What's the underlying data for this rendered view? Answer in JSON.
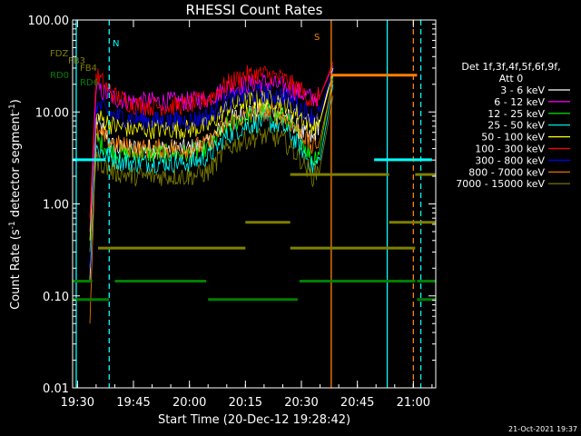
{
  "chart_data": {
    "type": "line",
    "title": "RHESSI Count Rates",
    "xlabel": "Start Time (20-Dec-12 19:28:42)",
    "ylabel": "Count Rate (s⁻¹ detector segment⁻¹)",
    "ylabel_parts": [
      "Count Rate (s",
      "-1",
      " detector segment",
      "-1",
      ")"
    ],
    "y_scale": "log",
    "xlim": [
      "19:28:42",
      "21:06:00"
    ],
    "ylim": [
      0.01,
      100
    ],
    "x_ticks": [
      "19:30",
      "19:45",
      "20:00",
      "20:15",
      "20:30",
      "20:45",
      "21:00"
    ],
    "y_ticks": [
      "0.01",
      "0.10",
      "1.00",
      "10.00",
      "100.00"
    ],
    "legend_header": [
      "Det 1f,3f,4f,5f,6f,9f,",
      "Att 0"
    ],
    "legend_position": "right",
    "series": [
      {
        "name": "3 - 6 keV",
        "color": "#ffffff",
        "x": [
          "19:33:20",
          "19:35:00",
          "19:40:00",
          "19:45:00",
          "19:50:00",
          "19:55:00",
          "20:00:00",
          "20:05:00",
          "20:10:00",
          "20:15:00",
          "20:20:00",
          "20:25:00",
          "20:30:00",
          "20:33:00",
          "20:35:00",
          "20:38:30"
        ],
        "values": [
          0.15,
          8,
          4,
          4,
          4,
          4,
          4,
          4.5,
          8,
          10,
          11,
          10,
          6,
          5,
          8,
          30
        ]
      },
      {
        "name": "6 - 12 keV",
        "color": "#ff00ff",
        "x": [
          "19:33:20",
          "19:35:00",
          "19:40:00",
          "19:45:00",
          "19:50:00",
          "19:55:00",
          "20:00:00",
          "20:05:00",
          "20:10:00",
          "20:15:00",
          "20:20:00",
          "20:25:00",
          "20:30:00",
          "20:33:00",
          "20:35:00",
          "20:38:30"
        ],
        "values": [
          0.5,
          18,
          14,
          13,
          13,
          13,
          13,
          14,
          18,
          20,
          21,
          19,
          16,
          14,
          15,
          32
        ]
      },
      {
        "name": "12 - 25 keV",
        "color": "#00ff00",
        "x": [
          "19:33:20",
          "19:35:00",
          "19:40:00",
          "19:45:00",
          "19:50:00",
          "19:55:00",
          "20:00:00",
          "20:05:00",
          "20:10:00",
          "20:15:00",
          "20:20:00",
          "20:25:00",
          "20:30:00",
          "20:33:00",
          "20:35:00",
          "20:38:30"
        ],
        "values": [
          0.3,
          5,
          3.5,
          3.5,
          3.5,
          3.5,
          3.5,
          4,
          7,
          9,
          10,
          9,
          5,
          3,
          4,
          25
        ]
      },
      {
        "name": "25 - 50 keV",
        "color": "#00ffff",
        "x": [
          "19:33:20",
          "19:35:00",
          "19:40:00",
          "19:45:00",
          "19:50:00",
          "19:55:00",
          "20:00:00",
          "20:05:00",
          "20:10:00",
          "20:15:00",
          "20:20:00",
          "20:25:00",
          "20:30:00",
          "20:33:00",
          "20:35:00",
          "20:38:30"
        ],
        "values": [
          0.2,
          4,
          3,
          2.8,
          2.8,
          2.8,
          2.8,
          3.2,
          5.5,
          7,
          8,
          7,
          4,
          2.5,
          3,
          20
        ]
      },
      {
        "name": "50 - 100 keV",
        "color": "#ffff00",
        "x": [
          "19:33:20",
          "19:35:00",
          "19:40:00",
          "19:45:00",
          "19:50:00",
          "19:55:00",
          "20:00:00",
          "20:05:00",
          "20:10:00",
          "20:15:00",
          "20:20:00",
          "20:25:00",
          "20:30:00",
          "20:33:00",
          "20:35:00",
          "20:38:30"
        ],
        "values": [
          0.4,
          9,
          7,
          6.5,
          6.5,
          6.5,
          6.5,
          7,
          11,
          13,
          14,
          13,
          9,
          7,
          8,
          26
        ]
      },
      {
        "name": "100 - 300 keV",
        "color": "#ff0000",
        "x": [
          "19:33:20",
          "19:35:00",
          "19:40:00",
          "19:45:00",
          "19:50:00",
          "19:55:00",
          "20:00:00",
          "20:05:00",
          "20:10:00",
          "20:15:00",
          "20:20:00",
          "20:25:00",
          "20:30:00",
          "20:33:00",
          "20:35:00",
          "20:38:30"
        ],
        "values": [
          0.7,
          25,
          15,
          12,
          11.5,
          11.5,
          12,
          14,
          20,
          25,
          26,
          23,
          17,
          13,
          15,
          35
        ]
      },
      {
        "name": "300 - 800 keV",
        "color": "#0000ff",
        "x": [
          "19:33:20",
          "19:35:00",
          "19:40:00",
          "19:45:00",
          "19:50:00",
          "19:55:00",
          "20:00:00",
          "20:05:00",
          "20:10:00",
          "20:15:00",
          "20:20:00",
          "20:25:00",
          "20:30:00",
          "20:33:00",
          "20:35:00",
          "20:38:30"
        ],
        "values": [
          0.2,
          12,
          9,
          8.5,
          8,
          8,
          8,
          9,
          13,
          15,
          16,
          15,
          11,
          9,
          10,
          28
        ]
      },
      {
        "name": "800 - 7000 keV",
        "color": "#ff8000",
        "x": [
          "19:33:20",
          "19:35:00",
          "19:40:00",
          "19:45:00",
          "19:50:00",
          "19:55:00",
          "20:00:00",
          "20:05:00",
          "20:10:00",
          "20:15:00",
          "20:20:00",
          "20:25:00",
          "20:30:00",
          "20:33:00",
          "20:35:00",
          "20:38:30"
        ],
        "values": [
          0.05,
          6,
          4.5,
          4,
          4,
          4,
          4,
          4.5,
          7.5,
          9,
          10,
          9,
          6,
          4,
          5,
          22
        ]
      },
      {
        "name": "7000 - 15000 keV",
        "color": "#808000",
        "x": [
          "19:33:20",
          "19:35:00",
          "19:40:00",
          "19:45:00",
          "19:50:00",
          "19:55:00",
          "20:00:00",
          "20:05:00",
          "20:10:00",
          "20:15:00",
          "20:20:00",
          "20:25:00",
          "20:30:00",
          "20:33:00",
          "20:35:00",
          "20:38:30"
        ],
        "values": [
          0.3,
          3,
          2.2,
          2,
          2,
          2,
          2,
          2.2,
          4,
          5,
          5.5,
          5,
          3,
          2,
          2.5,
          15
        ]
      }
    ],
    "flag_bars": [
      {
        "label": "",
        "color": "#00ffff",
        "y": 62,
        "segments": [
          [
            "19:28:42",
            "19:37:30"
          ],
          [
            "20:49:30",
            "21:05:00"
          ]
        ]
      },
      {
        "label": "FDZ",
        "color": "#808000",
        "y": 58,
        "segments": [
          [
            "20:27:00",
            "20:53:30"
          ],
          [
            "21:00:30",
            "21:06:00"
          ]
        ]
      },
      {
        "label": "FB3",
        "color": "#808000",
        "y": 45,
        "segments": [
          [
            "20:15:00",
            "20:27:00"
          ],
          [
            "20:53:30",
            "21:00:30"
          ],
          [
            "21:00:30",
            "21:06:00"
          ]
        ]
      },
      {
        "label": "FB4",
        "color": "#808000",
        "y": 38,
        "segments": [
          [
            "19:35:30",
            "20:15:00"
          ],
          [
            "20:27:00",
            "21:00:30"
          ]
        ]
      },
      {
        "label": "RD0",
        "color": "#008000",
        "y": 29,
        "segments": [
          [
            "19:28:42",
            "19:34:00"
          ],
          [
            "19:40:00",
            "20:04:30"
          ],
          [
            "20:29:30",
            "21:00:30"
          ],
          [
            "21:01:00",
            "21:06:00"
          ]
        ]
      },
      {
        "label": "RD6",
        "color": "#008000",
        "y": 24,
        "segments": [
          [
            "19:28:42",
            "19:38:30"
          ],
          [
            "20:05:00",
            "20:29:00"
          ],
          [
            "21:01:00",
            "21:06:00"
          ]
        ]
      },
      {
        "label": "",
        "color": "#ff8000",
        "y": 85,
        "segments": [
          [
            "20:38:00",
            "21:01:00"
          ]
        ]
      }
    ],
    "vertical_lines": [
      {
        "x": "19:29:40",
        "color": "#00ffff",
        "style": "solid"
      },
      {
        "x": "19:38:30",
        "color": "#00ffff",
        "style": "dashed"
      },
      {
        "x": "20:38:00",
        "color": "#ff8000",
        "style": "solid"
      },
      {
        "x": "20:53:00",
        "color": "#00ffff",
        "style": "solid"
      },
      {
        "x": "21:00:00",
        "color": "#ff8000",
        "style": "dashed"
      },
      {
        "x": "21:02:00",
        "color": "#00ffff",
        "style": "dashed"
      }
    ],
    "marker_labels": [
      {
        "text": "N",
        "color": "#00ffff"
      },
      {
        "text": "S",
        "color": "#ff8000"
      }
    ]
  },
  "footer": {
    "timestamp": "21-Oct-2021 19:37"
  }
}
